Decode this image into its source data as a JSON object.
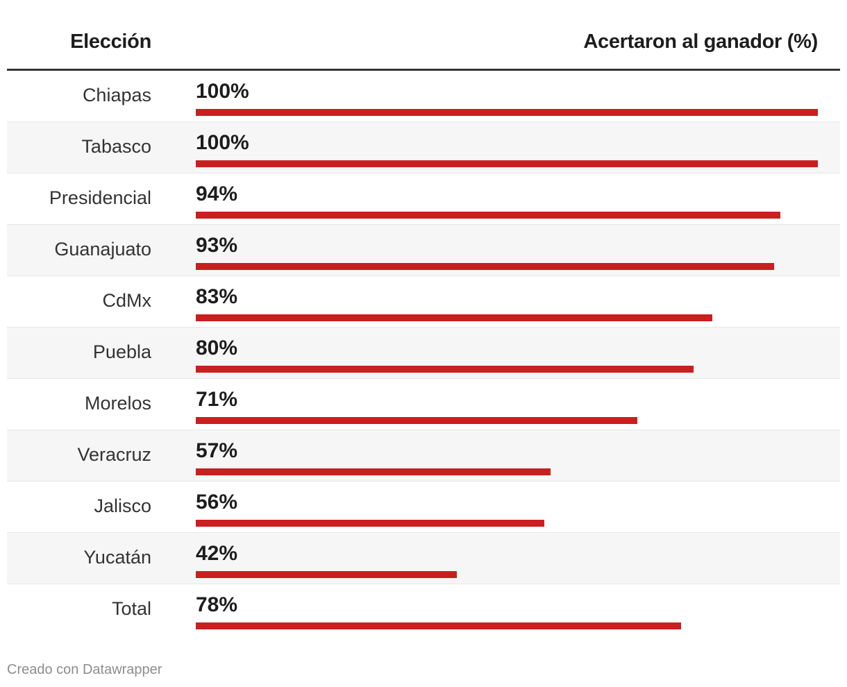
{
  "header": {
    "left": "Elección",
    "right": "Acertaron al ganador (%)"
  },
  "chart_data": {
    "type": "bar",
    "orientation": "horizontal",
    "categories": [
      "Chiapas",
      "Tabasco",
      "Presidencial",
      "Guanajuato",
      "CdMx",
      "Puebla",
      "Morelos",
      "Veracruz",
      "Jalisco",
      "Yucatán",
      "Total"
    ],
    "values": [
      100,
      100,
      94,
      93,
      83,
      80,
      71,
      57,
      56,
      42,
      78
    ],
    "value_labels": [
      "100%",
      "100%",
      "94%",
      "93%",
      "83%",
      "80%",
      "71%",
      "57%",
      "56%",
      "42%",
      "78%"
    ],
    "xlim": [
      0,
      100
    ],
    "bar_color": "#c91f1f",
    "shaded_row_color": "#f6f6f6"
  },
  "footer": {
    "credit": "Creado con Datawrapper"
  }
}
